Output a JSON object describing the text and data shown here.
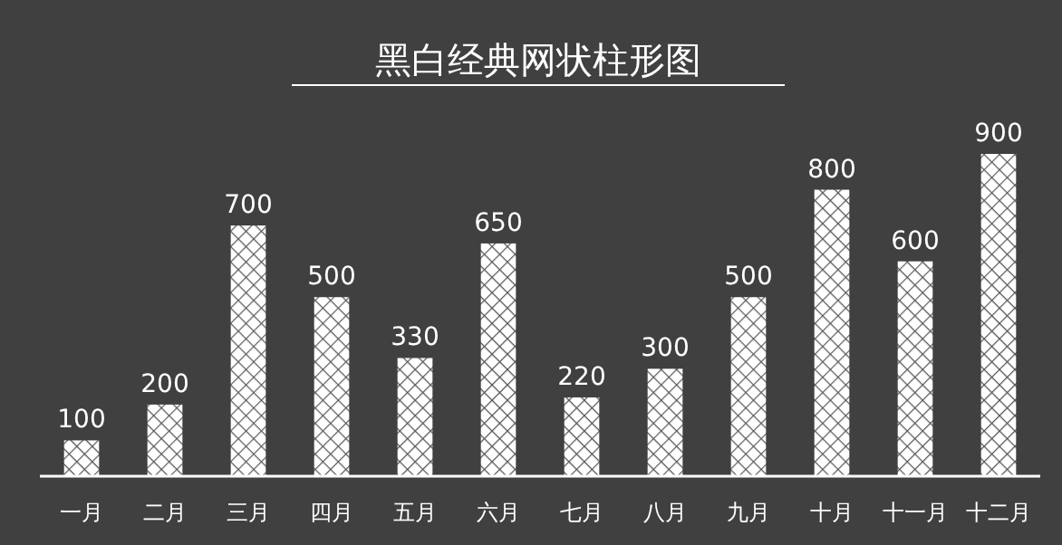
{
  "chart_data": {
    "type": "bar",
    "title": "黑白经典网状柱形图",
    "categories": [
      "一月",
      "二月",
      "三月",
      "四月",
      "五月",
      "六月",
      "七月",
      "八月",
      "九月",
      "十月",
      "十一月",
      "十二月"
    ],
    "values": [
      100,
      200,
      700,
      500,
      330,
      650,
      220,
      300,
      500,
      800,
      600,
      900
    ],
    "color": "#ffffff",
    "data_labels": true
  }
}
